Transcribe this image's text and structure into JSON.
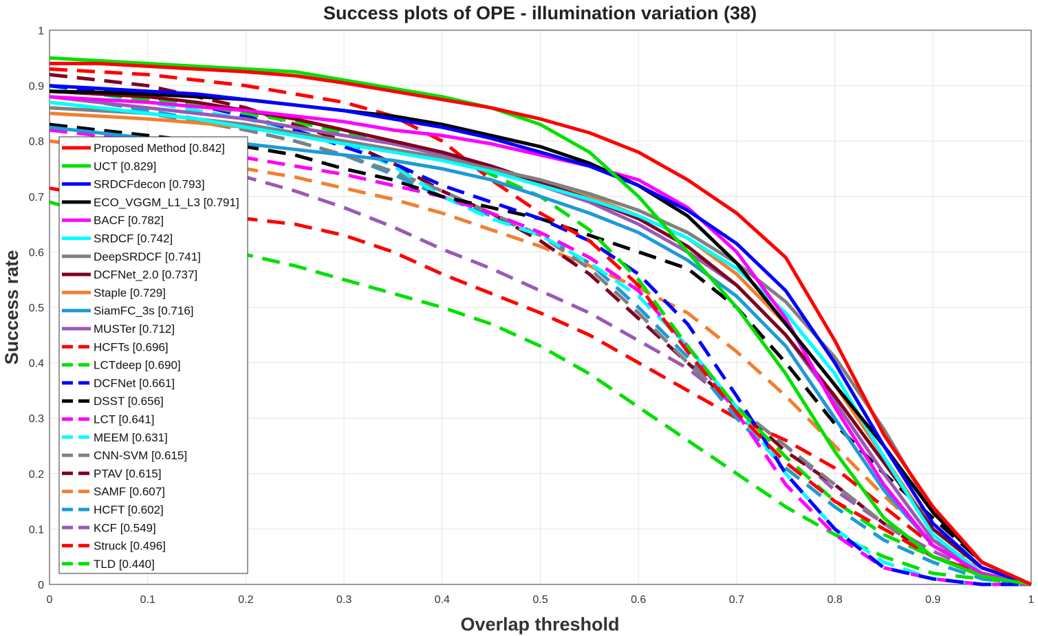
{
  "chart_data": {
    "type": "line",
    "title": "Success plots of OPE - illumination variation (38)",
    "xlabel": "Overlap threshold",
    "ylabel": "Success rate",
    "xlim": [
      0,
      1
    ],
    "ylim": [
      0,
      1
    ],
    "grid": true,
    "legend_position": "left",
    "x_ticks": [
      "0",
      "0.1",
      "0.2",
      "0.3",
      "0.4",
      "0.5",
      "0.6",
      "0.7",
      "0.8",
      "0.9",
      "1"
    ],
    "y_ticks": [
      "0",
      "0.1",
      "0.2",
      "0.3",
      "0.4",
      "0.5",
      "0.6",
      "0.7",
      "0.8",
      "0.9",
      "1"
    ],
    "x": [
      0,
      0.05,
      0.1,
      0.15,
      0.2,
      0.25,
      0.3,
      0.35,
      0.4,
      0.45,
      0.5,
      0.55,
      0.6,
      0.65,
      0.7,
      0.75,
      0.8,
      0.85,
      0.9,
      0.95,
      1.0
    ],
    "series": [
      {
        "name": "Proposed Method",
        "score": "0.842",
        "legend": "Proposed Method [0.842]",
        "color": "#ff0000",
        "dashed": false,
        "values": [
          0.94,
          0.94,
          0.935,
          0.93,
          0.925,
          0.918,
          0.905,
          0.89,
          0.875,
          0.86,
          0.84,
          0.815,
          0.78,
          0.73,
          0.67,
          0.59,
          0.44,
          0.27,
          0.14,
          0.04,
          0.0
        ]
      },
      {
        "name": "UCT",
        "score": "0.829",
        "legend": "UCT [0.829]",
        "color": "#00e000",
        "dashed": false,
        "values": [
          0.95,
          0.945,
          0.94,
          0.935,
          0.93,
          0.925,
          0.91,
          0.895,
          0.88,
          0.86,
          0.83,
          0.78,
          0.7,
          0.6,
          0.5,
          0.38,
          0.24,
          0.12,
          0.05,
          0.015,
          0.0
        ]
      },
      {
        "name": "SRDCFdecon",
        "score": "0.793",
        "legend": "SRDCFdecon [0.793]",
        "color": "#0000ff",
        "dashed": false,
        "values": [
          0.9,
          0.895,
          0.89,
          0.885,
          0.875,
          0.865,
          0.855,
          0.84,
          0.825,
          0.805,
          0.78,
          0.755,
          0.72,
          0.675,
          0.615,
          0.53,
          0.4,
          0.25,
          0.11,
          0.03,
          0.0
        ]
      },
      {
        "name": "ECO_VGGM_L1_L3",
        "score": "0.791",
        "legend": "ECO_VGGM_L1_L3 [0.791]",
        "color": "#000000",
        "dashed": false,
        "values": [
          0.89,
          0.888,
          0.885,
          0.88,
          0.875,
          0.865,
          0.855,
          0.845,
          0.83,
          0.81,
          0.79,
          0.76,
          0.72,
          0.665,
          0.58,
          0.47,
          0.36,
          0.25,
          0.13,
          0.04,
          0.0
        ]
      },
      {
        "name": "BACF",
        "score": "0.782",
        "legend": "BACF [0.782]",
        "color": "#ff00ff",
        "dashed": false,
        "values": [
          0.88,
          0.875,
          0.87,
          0.862,
          0.855,
          0.845,
          0.835,
          0.82,
          0.81,
          0.795,
          0.775,
          0.755,
          0.73,
          0.68,
          0.6,
          0.48,
          0.32,
          0.18,
          0.07,
          0.02,
          0.0
        ]
      },
      {
        "name": "SRDCF",
        "score": "0.742",
        "legend": "SRDCF [0.742]",
        "color": "#00ffff",
        "dashed": false,
        "values": [
          0.87,
          0.86,
          0.85,
          0.84,
          0.825,
          0.81,
          0.795,
          0.78,
          0.765,
          0.745,
          0.72,
          0.695,
          0.665,
          0.625,
          0.57,
          0.49,
          0.38,
          0.23,
          0.09,
          0.02,
          0.0
        ]
      },
      {
        "name": "DeepSRDCF",
        "score": "0.741",
        "legend": "DeepSRDCF [0.741]",
        "color": "#808080",
        "dashed": false,
        "values": [
          0.86,
          0.855,
          0.85,
          0.84,
          0.83,
          0.815,
          0.8,
          0.785,
          0.77,
          0.75,
          0.73,
          0.705,
          0.675,
          0.635,
          0.58,
          0.51,
          0.41,
          0.28,
          0.13,
          0.04,
          0.0
        ]
      },
      {
        "name": "DCFNet_2.0",
        "score": "0.737",
        "legend": "DCFNet_2.0 [0.737]",
        "color": "#7f0020",
        "dashed": false,
        "values": [
          0.89,
          0.885,
          0.88,
          0.87,
          0.855,
          0.84,
          0.82,
          0.8,
          0.78,
          0.755,
          0.725,
          0.695,
          0.66,
          0.61,
          0.54,
          0.45,
          0.34,
          0.22,
          0.1,
          0.03,
          0.0
        ]
      },
      {
        "name": "Staple",
        "score": "0.729",
        "legend": "Staple [0.729]",
        "color": "#f08030",
        "dashed": false,
        "values": [
          0.85,
          0.845,
          0.84,
          0.833,
          0.825,
          0.812,
          0.8,
          0.785,
          0.77,
          0.75,
          0.73,
          0.7,
          0.665,
          0.625,
          0.56,
          0.47,
          0.36,
          0.23,
          0.1,
          0.03,
          0.0
        ]
      },
      {
        "name": "SiamFC_3s",
        "score": "0.716",
        "legend": "SiamFC_3s [0.716]",
        "color": "#1e9ad6",
        "dashed": false,
        "values": [
          0.825,
          0.815,
          0.805,
          0.8,
          0.795,
          0.785,
          0.775,
          0.765,
          0.75,
          0.73,
          0.7,
          0.67,
          0.635,
          0.585,
          0.52,
          0.43,
          0.3,
          0.17,
          0.07,
          0.02,
          0.0
        ]
      },
      {
        "name": "MUSTer",
        "score": "0.712",
        "legend": "MUSTer [0.712]",
        "color": "#9b59b6",
        "dashed": false,
        "values": [
          0.88,
          0.87,
          0.86,
          0.85,
          0.84,
          0.825,
          0.81,
          0.795,
          0.775,
          0.75,
          0.72,
          0.69,
          0.65,
          0.6,
          0.54,
          0.45,
          0.33,
          0.2,
          0.08,
          0.02,
          0.0
        ]
      },
      {
        "name": "HCFTs",
        "score": "0.696",
        "legend": "HCFTs [0.696]",
        "color": "#ff0000",
        "dashed": true,
        "values": [
          0.93,
          0.925,
          0.92,
          0.91,
          0.9,
          0.885,
          0.87,
          0.845,
          0.8,
          0.73,
          0.67,
          0.62,
          0.54,
          0.42,
          0.31,
          0.22,
          0.15,
          0.1,
          0.05,
          0.02,
          0.0
        ]
      },
      {
        "name": "LCTdeep",
        "score": "0.690",
        "legend": "LCTdeep [0.690]",
        "color": "#00e000",
        "dashed": true,
        "values": [
          0.89,
          0.885,
          0.875,
          0.865,
          0.85,
          0.835,
          0.815,
          0.8,
          0.775,
          0.74,
          0.7,
          0.64,
          0.55,
          0.43,
          0.32,
          0.23,
          0.15,
          0.09,
          0.05,
          0.02,
          0.0
        ]
      },
      {
        "name": "DCFNet",
        "score": "0.661",
        "legend": "DCFNet [0.661]",
        "color": "#0000ff",
        "dashed": true,
        "values": [
          0.9,
          0.89,
          0.88,
          0.865,
          0.845,
          0.82,
          0.79,
          0.76,
          0.72,
          0.69,
          0.66,
          0.62,
          0.56,
          0.47,
          0.34,
          0.2,
          0.1,
          0.03,
          0.01,
          0.0,
          0.0
        ]
      },
      {
        "name": "DSST",
        "score": "0.656",
        "legend": "DSST [0.656]",
        "color": "#000000",
        "dashed": true,
        "values": [
          0.83,
          0.82,
          0.81,
          0.8,
          0.79,
          0.775,
          0.75,
          0.73,
          0.7,
          0.68,
          0.66,
          0.63,
          0.6,
          0.57,
          0.5,
          0.4,
          0.29,
          0.2,
          0.12,
          0.04,
          0.0
        ]
      },
      {
        "name": "LCT",
        "score": "0.641",
        "legend": "LCT [0.641]",
        "color": "#ff00ff",
        "dashed": true,
        "values": [
          0.82,
          0.81,
          0.8,
          0.785,
          0.77,
          0.755,
          0.74,
          0.72,
          0.7,
          0.67,
          0.635,
          0.59,
          0.53,
          0.43,
          0.31,
          0.18,
          0.09,
          0.03,
          0.01,
          0.0,
          0.0
        ]
      },
      {
        "name": "MEEM",
        "score": "0.631",
        "legend": "MEEM [0.631]",
        "color": "#00ffff",
        "dashed": true,
        "values": [
          0.9,
          0.885,
          0.87,
          0.855,
          0.84,
          0.82,
          0.795,
          0.755,
          0.7,
          0.66,
          0.63,
          0.58,
          0.52,
          0.43,
          0.32,
          0.2,
          0.1,
          0.04,
          0.01,
          0.0,
          0.0
        ]
      },
      {
        "name": "CNN-SVM",
        "score": "0.615",
        "legend": "CNN-SVM [0.615]",
        "color": "#808080",
        "dashed": true,
        "values": [
          0.87,
          0.86,
          0.85,
          0.835,
          0.82,
          0.8,
          0.775,
          0.745,
          0.71,
          0.67,
          0.63,
          0.57,
          0.49,
          0.4,
          0.32,
          0.25,
          0.18,
          0.11,
          0.05,
          0.02,
          0.0
        ]
      },
      {
        "name": "PTAV",
        "score": "0.615",
        "legend": "PTAV [0.615]",
        "color": "#7f0020",
        "dashed": true,
        "values": [
          0.92,
          0.91,
          0.9,
          0.88,
          0.86,
          0.83,
          0.8,
          0.76,
          0.71,
          0.67,
          0.62,
          0.56,
          0.48,
          0.4,
          0.32,
          0.24,
          0.18,
          0.11,
          0.05,
          0.02,
          0.0
        ]
      },
      {
        "name": "SAMF",
        "score": "0.607",
        "legend": "SAMF [0.607]",
        "color": "#f08030",
        "dashed": true,
        "values": [
          0.8,
          0.79,
          0.78,
          0.765,
          0.75,
          0.735,
          0.715,
          0.695,
          0.67,
          0.64,
          0.61,
          0.575,
          0.535,
          0.49,
          0.42,
          0.34,
          0.25,
          0.16,
          0.08,
          0.03,
          0.0
        ]
      },
      {
        "name": "HCFT",
        "score": "0.602",
        "legend": "HCFT [0.602]",
        "color": "#1e9ad6",
        "dashed": true,
        "values": [
          0.88,
          0.87,
          0.855,
          0.84,
          0.82,
          0.8,
          0.775,
          0.74,
          0.7,
          0.665,
          0.63,
          0.58,
          0.5,
          0.41,
          0.3,
          0.21,
          0.14,
          0.08,
          0.04,
          0.01,
          0.0
        ]
      },
      {
        "name": "KCF",
        "score": "0.549",
        "legend": "KCF [0.549]",
        "color": "#9b59b6",
        "dashed": true,
        "values": [
          0.8,
          0.79,
          0.775,
          0.755,
          0.735,
          0.71,
          0.68,
          0.645,
          0.605,
          0.57,
          0.53,
          0.49,
          0.44,
          0.39,
          0.32,
          0.25,
          0.17,
          0.11,
          0.06,
          0.02,
          0.0
        ]
      },
      {
        "name": "Struck",
        "score": "0.496",
        "legend": "Struck [0.496]",
        "color": "#ff0000",
        "dashed": true,
        "values": [
          0.715,
          0.7,
          0.685,
          0.67,
          0.66,
          0.65,
          0.63,
          0.6,
          0.56,
          0.525,
          0.49,
          0.45,
          0.4,
          0.35,
          0.3,
          0.26,
          0.21,
          0.14,
          0.07,
          0.02,
          0.0
        ]
      },
      {
        "name": "TLD",
        "score": "0.440",
        "legend": "TLD [0.440]",
        "color": "#00e000",
        "dashed": true,
        "values": [
          0.69,
          0.665,
          0.64,
          0.615,
          0.595,
          0.575,
          0.55,
          0.525,
          0.5,
          0.47,
          0.43,
          0.38,
          0.32,
          0.26,
          0.2,
          0.14,
          0.09,
          0.05,
          0.02,
          0.01,
          0.0
        ]
      }
    ]
  }
}
